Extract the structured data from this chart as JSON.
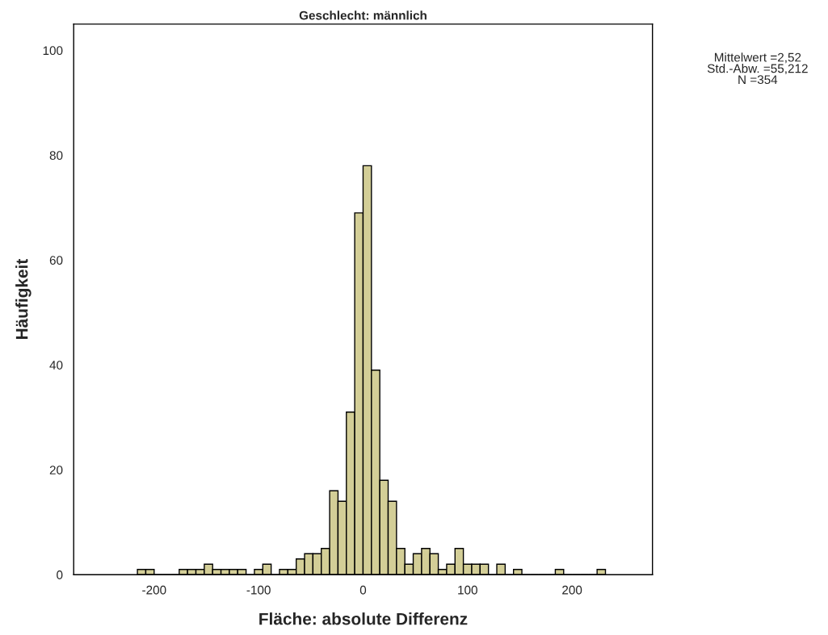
{
  "chart_data": {
    "type": "histogram",
    "title": "Geschlecht: männlich",
    "xlabel": "Fläche: absolute Differenz",
    "ylabel": "Häufigkeit",
    "bins": [
      -216,
      -208,
      -200,
      -192,
      -184,
      -176,
      -168,
      -160,
      -152,
      -144,
      -136,
      -128,
      -120,
      -112,
      -104,
      -96,
      -88,
      -80,
      -72,
      -64,
      -56,
      -48,
      -40,
      -32,
      -24,
      -16,
      -8,
      0,
      8,
      16,
      24,
      32,
      40,
      48,
      56,
      64,
      72,
      80,
      88,
      96,
      104,
      112,
      120,
      128,
      136,
      144,
      152,
      160,
      168,
      176,
      184,
      192,
      200,
      208,
      216,
      224,
      232
    ],
    "values": [
      1,
      1,
      0,
      0,
      0,
      1,
      1,
      1,
      2,
      1,
      1,
      1,
      1,
      0,
      1,
      2,
      0,
      1,
      1,
      3,
      4,
      4,
      5,
      16,
      14,
      31,
      69,
      78,
      39,
      18,
      14,
      5,
      2,
      4,
      5,
      4,
      1,
      2,
      5,
      2,
      2,
      2,
      0,
      2,
      0,
      1,
      0,
      0,
      0,
      0,
      1,
      0,
      0,
      0,
      0,
      1
    ],
    "color": "#d3ce97",
    "xlim": [
      -277,
      277
    ],
    "ylim": [
      0,
      105
    ],
    "xticks": [
      -200,
      -100,
      0,
      100,
      200
    ],
    "yticks": [
      0,
      20,
      40,
      60,
      80,
      100
    ],
    "grid": false,
    "legend": false,
    "annotations": [
      "Mittelwert =2,52",
      "Std.-Abw. =55,212",
      "N =354"
    ]
  }
}
